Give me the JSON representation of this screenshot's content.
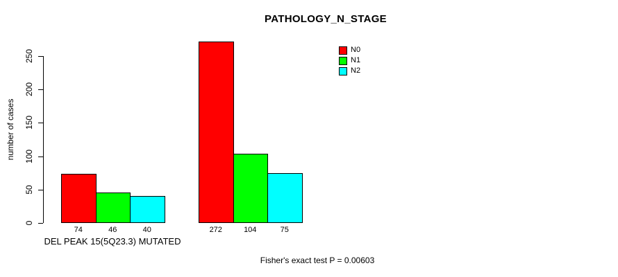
{
  "chart_data": {
    "type": "bar",
    "title": "PATHOLOGY_N_STAGE",
    "ylabel": "number of cases",
    "xlabel": "",
    "ylim": [
      0,
      250
    ],
    "yticks": [
      0,
      50,
      100,
      150,
      200,
      250
    ],
    "grid": false,
    "background_color": "#FFFFFF",
    "axis_color": "#000000",
    "categories": [
      "DEL PEAK 15(5Q23.3) MUTATED",
      ""
    ],
    "series": [
      {
        "name": "N0",
        "color": "#FF0000",
        "values": [
          74,
          272
        ]
      },
      {
        "name": "N1",
        "color": "#00FF00",
        "values": [
          46,
          104
        ]
      },
      {
        "name": "N2",
        "color": "#00FFFF",
        "values": [
          40,
          75
        ]
      }
    ],
    "bar_value_labels": [
      [
        74,
        46,
        40
      ],
      [
        272,
        104,
        75
      ]
    ],
    "legend": {
      "position": "top-right",
      "entries": [
        {
          "label": "N0",
          "color": "#FF0000"
        },
        {
          "label": "N1",
          "color": "#00FF00"
        },
        {
          "label": "N2",
          "color": "#00FFFF"
        }
      ]
    },
    "caption": "Fisher's exact test P = 0.00603"
  }
}
